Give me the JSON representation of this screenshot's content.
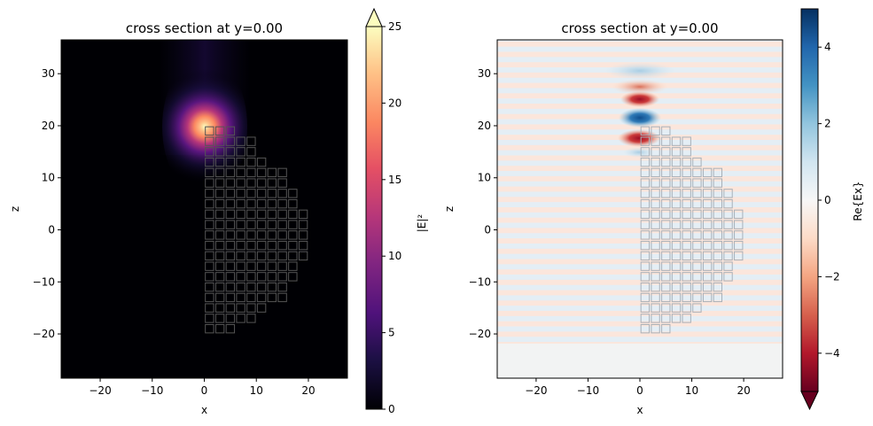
{
  "chart_data": [
    {
      "type": "heatmap",
      "title": "cross section at y=0.00",
      "xlabel": "x",
      "ylabel": "z",
      "xlim": [
        -27.5,
        27.5
      ],
      "ylim": [
        -28.5,
        36.5
      ],
      "xticks": [
        -20,
        -10,
        0,
        10,
        20
      ],
      "yticks": [
        -20,
        -10,
        0,
        10,
        20,
        30
      ],
      "colormap": "magma",
      "colorbar": {
        "label": "|E|²",
        "range": [
          0,
          25
        ],
        "ticks": [
          0,
          5,
          10,
          15,
          20,
          25
        ],
        "extend": "max"
      },
      "hotspot": {
        "x": 0,
        "z": 19.5,
        "peak": 25
      },
      "structure_outline_color": "#555555"
    },
    {
      "type": "heatmap",
      "title": "cross section at y=0.00",
      "xlabel": "x",
      "ylabel": "z",
      "xlim": [
        -27.5,
        27.5
      ],
      "ylim": [
        -28.5,
        36.5
      ],
      "xticks": [
        -20,
        -10,
        0,
        10,
        20
      ],
      "yticks": [
        -20,
        -10,
        0,
        10,
        20,
        30
      ],
      "colormap": "RdBu",
      "colorbar": {
        "label": "Re{Ex}",
        "range": [
          -5,
          5
        ],
        "ticks": [
          -4,
          -2,
          0,
          2,
          4
        ],
        "extend": "both"
      },
      "structure_outline_color": "#a8b0b8"
    }
  ],
  "structure": {
    "cell_pitch": 2,
    "cell_size": 1.6,
    "rows": [
      {
        "z": 19,
        "x_max": 5
      },
      {
        "z": 17,
        "x_max": 9
      },
      {
        "z": 15,
        "x_max": 9
      },
      {
        "z": 13,
        "x_max": 11
      },
      {
        "z": 11,
        "x_max": 15
      },
      {
        "z": 9,
        "x_max": 15
      },
      {
        "z": 7,
        "x_max": 17
      },
      {
        "z": 5,
        "x_max": 17
      },
      {
        "z": 3,
        "x_max": 19
      },
      {
        "z": 1,
        "x_max": 19
      },
      {
        "z": -1,
        "x_max": 19
      },
      {
        "z": -3,
        "x_max": 19
      },
      {
        "z": -5,
        "x_max": 19
      },
      {
        "z": -7,
        "x_max": 17
      },
      {
        "z": -9,
        "x_max": 17
      },
      {
        "z": -11,
        "x_max": 15
      },
      {
        "z": -13,
        "x_max": 15
      },
      {
        "z": -15,
        "x_max": 11
      },
      {
        "z": -17,
        "x_max": 9
      },
      {
        "z": -19,
        "x_max": 5
      }
    ]
  }
}
